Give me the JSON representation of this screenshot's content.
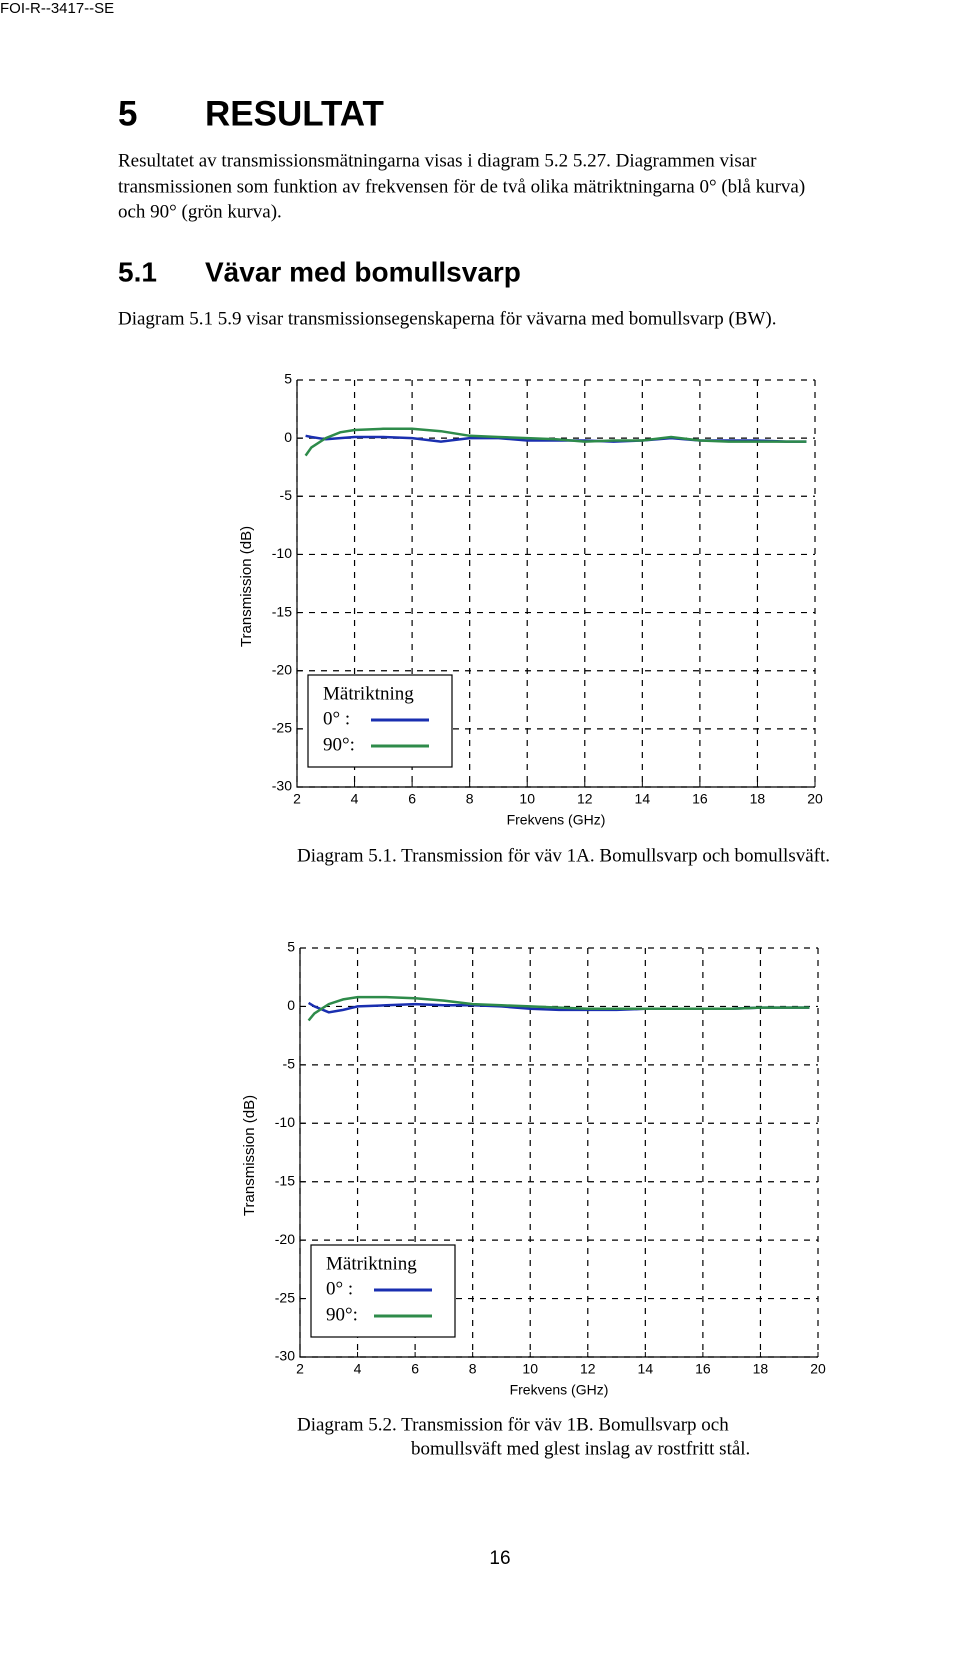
{
  "header": "FOI-R--3417--SE",
  "heading": {
    "number": "5",
    "title": "RESULTAT"
  },
  "intro": [
    "Resultatet av transmissionsmätningarna visas i diagram 5.2 5.27. Diagrammen visar",
    "transmissionen som funktion av frekvensen för de två olika mätriktningarna 0° (blå kurva)",
    "och 90° (grön kurva)."
  ],
  "section": {
    "number": "5.1",
    "title": "Vävar med bomullsvarp",
    "text": "Diagram 5.1 5.9 visar transmissionsegenskaperna för vävarna med bomullsvarp (BW)."
  },
  "chart_data": [
    {
      "type": "line",
      "x_label": "Frekvens (GHz)",
      "y_label": "Transmission (dB)",
      "x": [
        2.3,
        2.5,
        3,
        3.5,
        4,
        5,
        6,
        7,
        8,
        9,
        10,
        11,
        12,
        13,
        14,
        15,
        16,
        17,
        18,
        19,
        19.7
      ],
      "series": [
        {
          "name": "0° :",
          "color": "#1a2fb0",
          "values": [
            0.2,
            0.1,
            -0.1,
            0,
            0.1,
            0.1,
            0,
            -0.3,
            0,
            0,
            -0.2,
            -0.2,
            -0.2,
            -0.3,
            -0.2,
            0,
            -0.2,
            -0.2,
            -0.2,
            -0.3,
            -0.3
          ]
        },
        {
          "name": "90°:",
          "color": "#2e8b4a",
          "values": [
            -1.5,
            -0.8,
            0,
            0.5,
            0.7,
            0.8,
            0.8,
            0.6,
            0.2,
            0.1,
            0,
            -0.1,
            -0.3,
            -0.2,
            -0.2,
            0.1,
            -0.2,
            -0.3,
            -0.3,
            -0.3,
            -0.3
          ]
        }
      ],
      "legend_title": "Mätriktning",
      "legend": "lower left",
      "xlim": [
        2,
        20
      ],
      "xticks": [
        2,
        4,
        6,
        8,
        10,
        12,
        14,
        16,
        18,
        20
      ],
      "ylim": [
        -30,
        5
      ],
      "yticks": [
        -30,
        -25,
        -20,
        -15,
        -10,
        -5,
        0,
        5
      ],
      "grid": true,
      "caption": [
        "Diagram 5.1. Transmission för väv 1A. Bomullsvarp och bomullsväft."
      ]
    },
    {
      "type": "line",
      "x_label": "Frekvens (GHz)",
      "y_label": "Transmission (dB)",
      "x": [
        2.3,
        2.5,
        3,
        3.5,
        4,
        5,
        6,
        7,
        8,
        9,
        10,
        11,
        12,
        13,
        14,
        15,
        16,
        17,
        18,
        19,
        19.7
      ],
      "series": [
        {
          "name": "0° :",
          "color": "#1a2fb0",
          "values": [
            0.3,
            0,
            -0.5,
            -0.3,
            0,
            0.1,
            0.2,
            0.1,
            0.1,
            0,
            -0.2,
            -0.3,
            -0.3,
            -0.3,
            -0.2,
            -0.2,
            -0.2,
            -0.2,
            -0.1,
            -0.1,
            -0.1
          ]
        },
        {
          "name": "90°:",
          "color": "#2e8b4a",
          "values": [
            -1.2,
            -0.6,
            0.2,
            0.6,
            0.8,
            0.8,
            0.7,
            0.5,
            0.2,
            0.1,
            0,
            -0.1,
            -0.2,
            -0.2,
            -0.2,
            -0.2,
            -0.2,
            -0.2,
            -0.1,
            -0.1,
            -0.1
          ]
        }
      ],
      "legend_title": "Mätriktning",
      "legend": "lower left",
      "xlim": [
        2,
        20
      ],
      "xticks": [
        2,
        4,
        6,
        8,
        10,
        12,
        14,
        16,
        18,
        20
      ],
      "ylim": [
        -30,
        5
      ],
      "yticks": [
        -30,
        -25,
        -20,
        -15,
        -10,
        -5,
        0,
        5
      ],
      "grid": true,
      "caption": [
        "Diagram 5.2. Transmission för väv 1B. Bomullsvarp och",
        "bomullsväft med glest inslag av rostfritt stål."
      ]
    }
  ],
  "page_number": "16"
}
